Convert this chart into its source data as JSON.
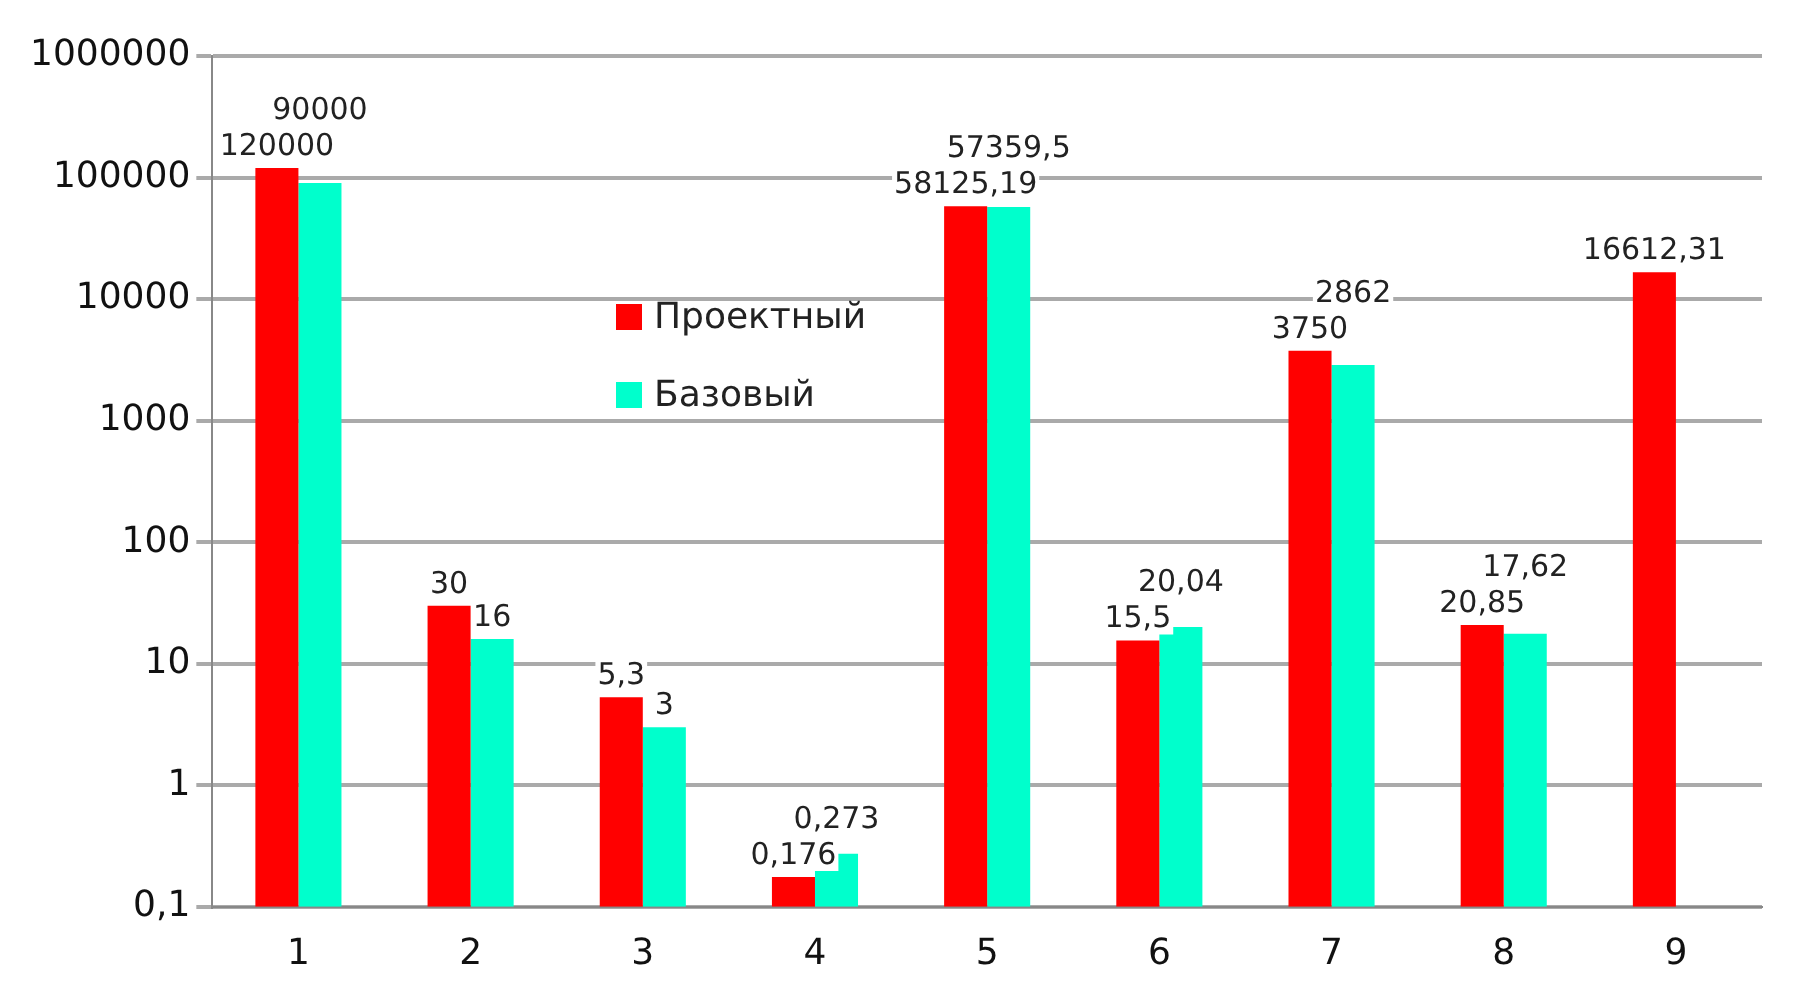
{
  "chart_data": {
    "type": "bar",
    "categories": [
      "1",
      "2",
      "3",
      "4",
      "5",
      "6",
      "7",
      "8",
      "9"
    ],
    "series": [
      {
        "name": "Проектный",
        "color": "#ff0000",
        "values": [
          120000,
          30,
          5.3,
          0.176,
          58125.19,
          15.5,
          3750,
          20.85,
          16612.31
        ],
        "value_labels": [
          "120000",
          "30",
          "5,3",
          "0,176",
          "58125,19",
          "15,5",
          "3750",
          "20,85",
          "16612,31"
        ]
      },
      {
        "name": "Базовый",
        "color": "#00ffcc",
        "values": [
          90000,
          16,
          3,
          0.273,
          57359.5,
          20.04,
          2862,
          17.62,
          null
        ],
        "value_labels": [
          "90000",
          "16",
          "3",
          "0,273",
          "57359,5",
          "20,04",
          "2862",
          "17,62",
          null
        ]
      }
    ],
    "log": "y",
    "ylim": [
      0.1,
      1000000
    ],
    "yticks": [
      {
        "value": 0.1,
        "label": "0,1"
      },
      1,
      10,
      100,
      1000,
      10000,
      100000,
      1000000
    ],
    "grid": "y",
    "legend": "top left"
  }
}
